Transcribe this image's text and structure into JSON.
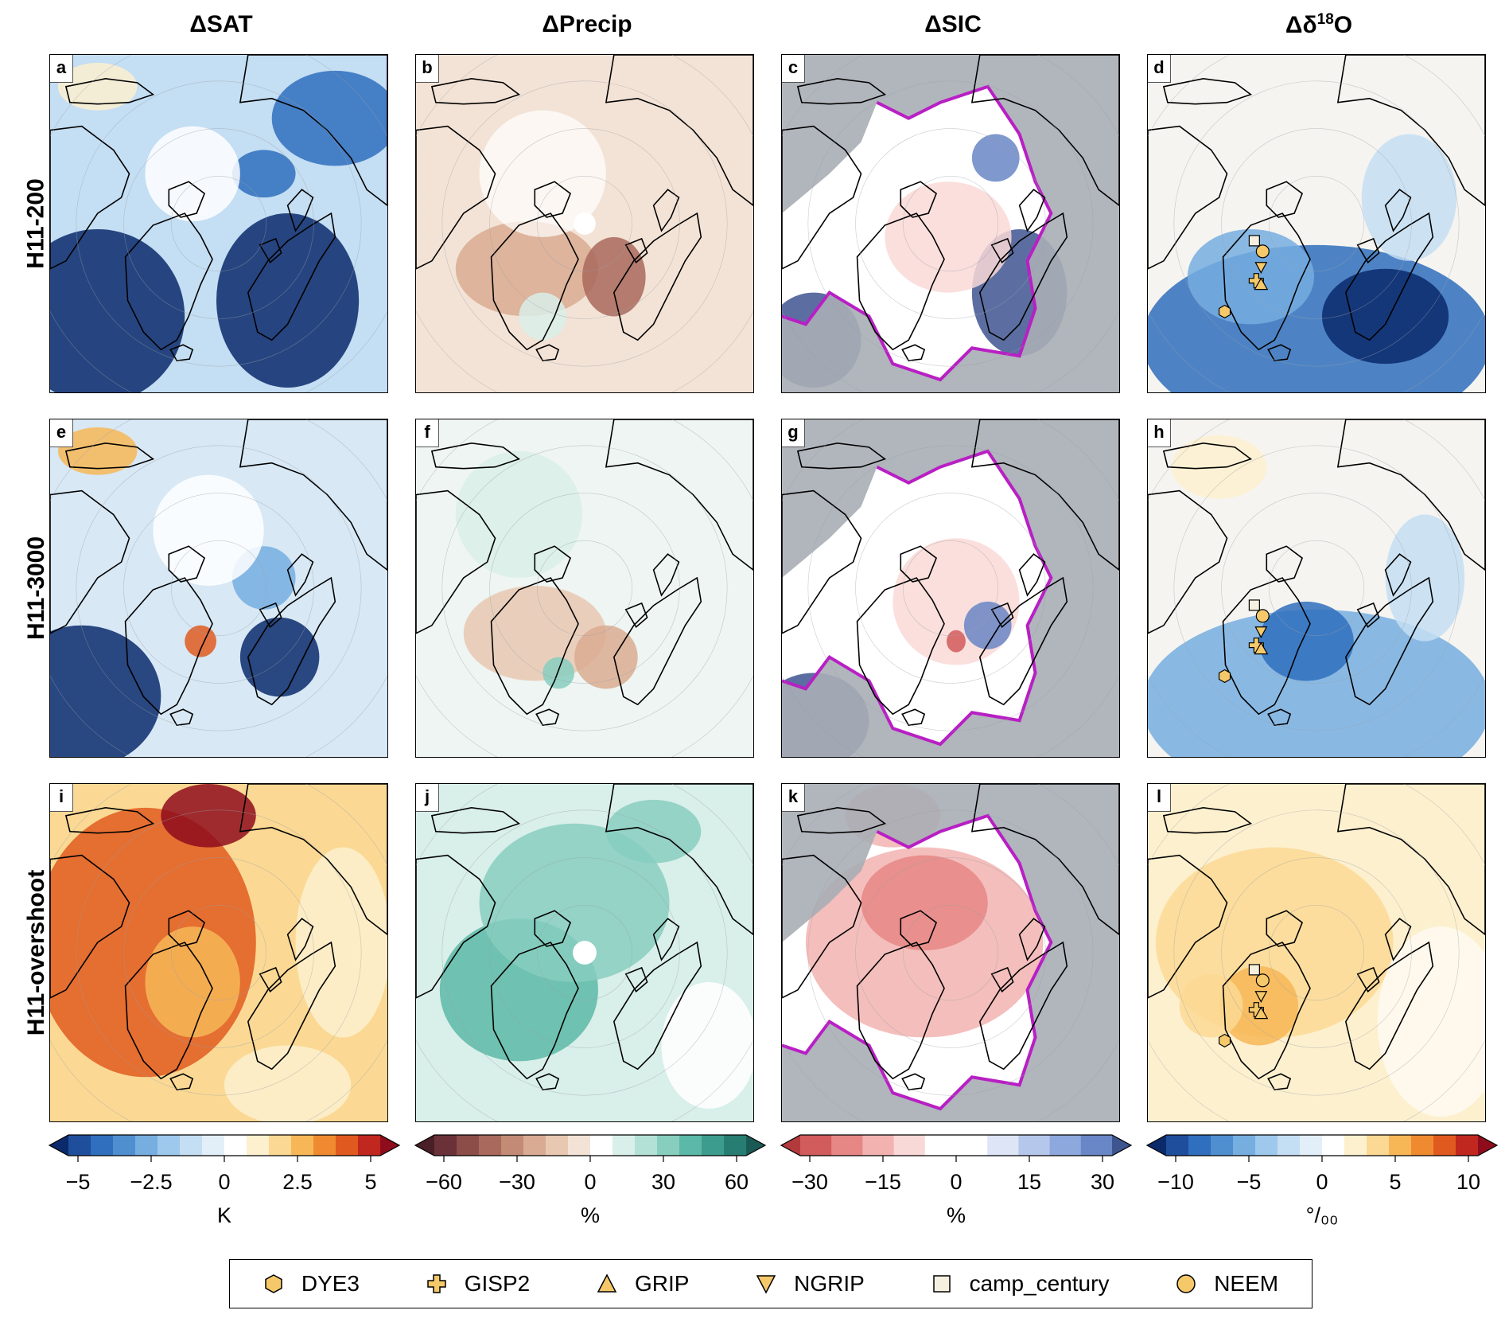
{
  "columns": [
    {
      "title_main": "ΔSAT",
      "title_sup": ""
    },
    {
      "title_main": "ΔPrecip",
      "title_sup": ""
    },
    {
      "title_main": "ΔSIC",
      "title_sup": ""
    },
    {
      "title_main": "Δδ",
      "title_sup": "18",
      "title_tail": "O"
    }
  ],
  "rows": [
    {
      "label": "H11-200",
      "letters": [
        "a",
        "b",
        "c",
        "d"
      ]
    },
    {
      "label": "H11-3000",
      "letters": [
        "e",
        "f",
        "g",
        "h"
      ]
    },
    {
      "label": "H11-overshoot",
      "letters": [
        "i",
        "j",
        "k",
        "l"
      ]
    }
  ],
  "colorbars": [
    {
      "ticks": [
        "−5",
        "−2.5",
        "0",
        "2.5",
        "5"
      ],
      "unit": "K",
      "palette": "bluered",
      "colors": [
        "#0b2a6b",
        "#1f4e9c",
        "#2f6fbd",
        "#4f8fd0",
        "#76aee0",
        "#9ec8ec",
        "#c4def3",
        "#e3eff8",
        "#ffffff",
        "#fdf0cf",
        "#fbd994",
        "#f7b757",
        "#ef8a30",
        "#e05a20",
        "#c0271f",
        "#8e0c1c"
      ]
    },
    {
      "ticks": [
        "−60",
        "−30",
        "0",
        "30",
        "60"
      ],
      "unit": "%",
      "palette": "brbg",
      "colors": [
        "#4a1e27",
        "#6a3138",
        "#8c4c48",
        "#a9695c",
        "#c38b75",
        "#d9ab92",
        "#e8c8b1",
        "#f3e3d6",
        "#ffffff",
        "#d9efe9",
        "#b4e1d6",
        "#87cebf",
        "#5cb8a7",
        "#3c9d8e",
        "#287d73",
        "#1a5a55"
      ]
    },
    {
      "ticks": [
        "−30",
        "−15",
        "0",
        "15",
        "30"
      ],
      "unit": "%",
      "palette": "redblue",
      "colors": [
        "#b2393c",
        "#d25b5c",
        "#e68785",
        "#f2b3b0",
        "#f9d9d7",
        "#ffffff",
        "#ffffff",
        "#dde5f6",
        "#b6c7ec",
        "#8da8dd",
        "#6986c6",
        "#3f5590"
      ]
    },
    {
      "ticks": [
        "−10",
        "−5",
        "0",
        "5",
        "10"
      ],
      "unit": "°/₀₀",
      "palette": "bluered",
      "colors": [
        "#0b2a6b",
        "#1f4e9c",
        "#2f6fbd",
        "#4f8fd0",
        "#76aee0",
        "#9ec8ec",
        "#c4def3",
        "#e3eff8",
        "#ffffff",
        "#fdf0cf",
        "#fbd994",
        "#f7b757",
        "#ef8a30",
        "#e05a20",
        "#c0271f",
        "#8e0c1c"
      ]
    }
  ],
  "legend": [
    {
      "name": "DYE3",
      "marker": "hexagon-icon"
    },
    {
      "name": "GISP2",
      "marker": "plus-icon"
    },
    {
      "name": "GRIP",
      "marker": "triangle-up-icon"
    },
    {
      "name": "NGRIP",
      "marker": "triangle-down-icon"
    },
    {
      "name": "camp_century",
      "marker": "square-icon"
    },
    {
      "name": "NEEM",
      "marker": "circle-icon"
    }
  ],
  "styles": {
    "marker_fill": "#f5c96a",
    "sea_ice_edge": "#b81fc4",
    "land_mask": "#a8adb5"
  }
}
